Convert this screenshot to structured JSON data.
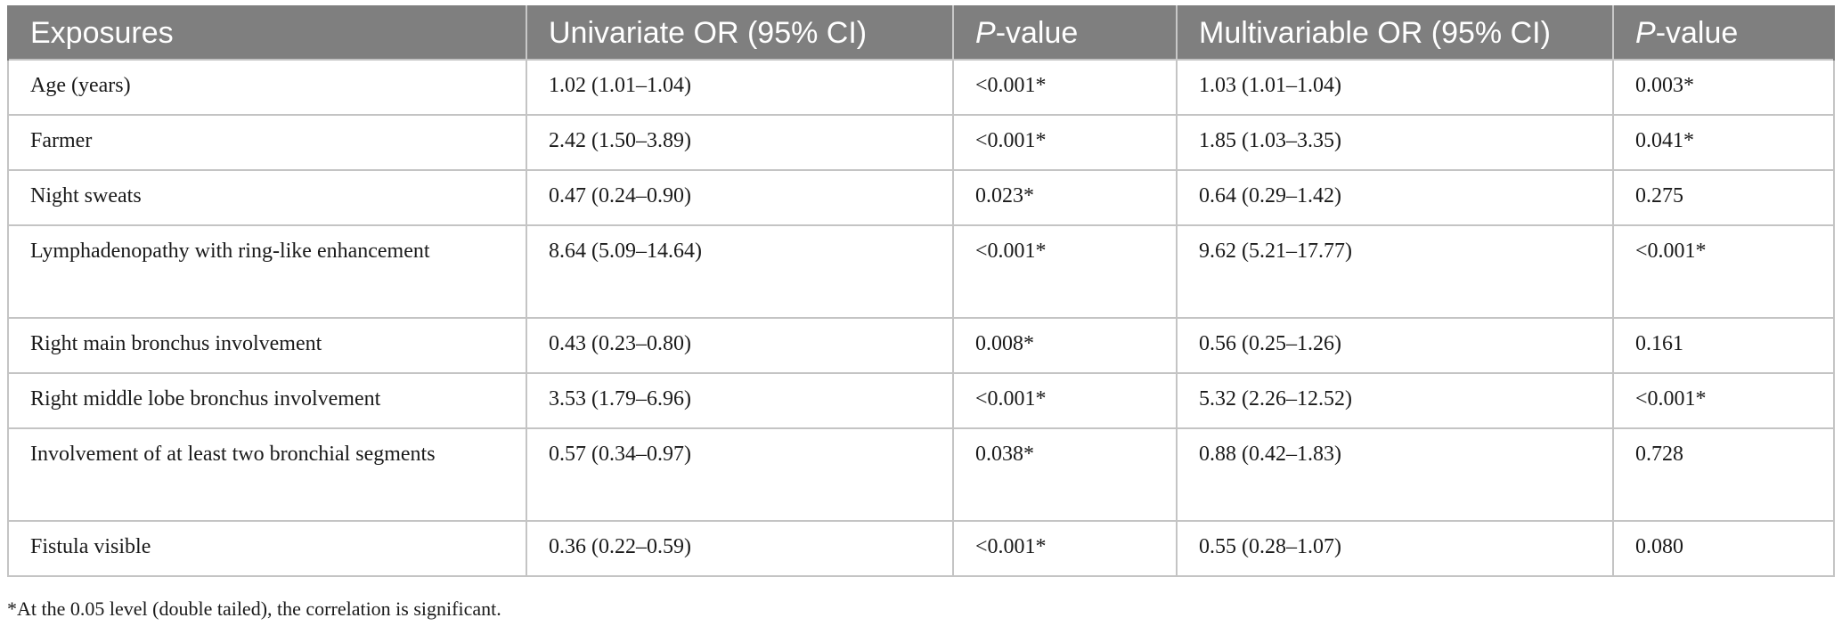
{
  "table": {
    "headers": [
      {
        "prefix": "Exposures",
        "italic": "",
        "suffix": ""
      },
      {
        "prefix": "Univariate OR (95% CI)",
        "italic": "",
        "suffix": ""
      },
      {
        "prefix": "",
        "italic": "P",
        "suffix": "-value"
      },
      {
        "prefix": "Multivariable OR (95% CI)",
        "italic": "",
        "suffix": ""
      },
      {
        "prefix": "",
        "italic": "P",
        "suffix": "-value"
      }
    ],
    "rows": [
      {
        "exposure": "Age (years)",
        "uni_or": "1.02 (1.01–1.04)",
        "uni_p": "<0.001*",
        "multi_or": "1.03 (1.01–1.04)",
        "multi_p": "0.003*"
      },
      {
        "exposure": "Farmer",
        "uni_or": "2.42 (1.50–3.89)",
        "uni_p": "<0.001*",
        "multi_or": "1.85 (1.03–3.35)",
        "multi_p": "0.041*"
      },
      {
        "exposure": "Night sweats",
        "uni_or": "0.47 (0.24–0.90)",
        "uni_p": "0.023*",
        "multi_or": "0.64 (0.29–1.42)",
        "multi_p": "0.275"
      },
      {
        "exposure": "Lymphadenopathy with ring-like enhancement",
        "uni_or": "8.64 (5.09–14.64)",
        "uni_p": "<0.001*",
        "multi_or": "9.62 (5.21–17.77)",
        "multi_p": "<0.001*"
      },
      {
        "exposure": "Right main bronchus involvement",
        "uni_or": "0.43 (0.23–0.80)",
        "uni_p": "0.008*",
        "multi_or": "0.56 (0.25–1.26)",
        "multi_p": "0.161"
      },
      {
        "exposure": "Right middle lobe bronchus involvement",
        "uni_or": "3.53 (1.79–6.96)",
        "uni_p": "<0.001*",
        "multi_or": "5.32 (2.26–12.52)",
        "multi_p": "<0.001*"
      },
      {
        "exposure": "Involvement of at least two bronchial segments",
        "uni_or": "0.57 (0.34–0.97)",
        "uni_p": "0.038*",
        "multi_or": "0.88 (0.42–1.83)",
        "multi_p": "0.728"
      },
      {
        "exposure": "Fistula visible",
        "uni_or": "0.36 (0.22–0.59)",
        "uni_p": "<0.001*",
        "multi_or": "0.55 (0.28–1.07)",
        "multi_p": "0.080"
      }
    ]
  },
  "footnote": "*At the 0.05 level (double tailed), the correlation is significant.",
  "colors": {
    "header_bg": "#7f7f7f",
    "header_text": "#ffffff",
    "grid": "#c4c4c4",
    "body_text": "#1a1a1a"
  }
}
